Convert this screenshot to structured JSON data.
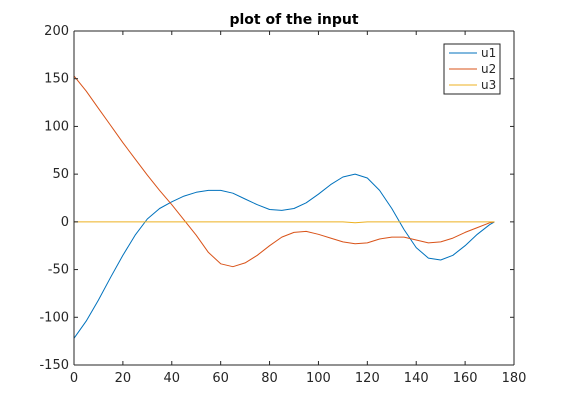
{
  "chart_data": {
    "type": "line",
    "title": "plot of the input",
    "xlabel": "",
    "ylabel": "",
    "xlim": [
      0,
      180
    ],
    "ylim": [
      -150,
      200
    ],
    "xticks": [
      0,
      20,
      40,
      60,
      80,
      100,
      120,
      140,
      160,
      180
    ],
    "yticks": [
      -150,
      -100,
      -50,
      0,
      50,
      100,
      150,
      200
    ],
    "grid": false,
    "legend_position": "top-right",
    "series": [
      {
        "name": "u1",
        "color": "#0072BD",
        "x": [
          0,
          5,
          10,
          15,
          20,
          25,
          30,
          35,
          40,
          45,
          50,
          55,
          60,
          65,
          70,
          75,
          80,
          85,
          90,
          95,
          100,
          105,
          110,
          115,
          120,
          125,
          130,
          135,
          140,
          145,
          150,
          155,
          160,
          165,
          170,
          172
        ],
        "y": [
          -122,
          -104,
          -82,
          -58,
          -35,
          -14,
          3,
          14,
          21,
          27,
          31,
          33,
          33,
          30,
          24,
          18,
          13,
          12,
          14,
          20,
          29,
          39,
          47,
          50,
          46,
          33,
          14,
          -8,
          -27,
          -38,
          -40,
          -35,
          -25,
          -13,
          -3,
          0
        ]
      },
      {
        "name": "u2",
        "color": "#D95319",
        "x": [
          0,
          5,
          10,
          15,
          20,
          25,
          30,
          35,
          40,
          45,
          50,
          55,
          60,
          65,
          70,
          75,
          80,
          85,
          90,
          95,
          100,
          105,
          110,
          115,
          120,
          125,
          130,
          135,
          140,
          145,
          150,
          155,
          160,
          165,
          170,
          172
        ],
        "y": [
          153,
          137,
          119,
          101,
          83,
          66,
          49,
          33,
          18,
          2,
          -14,
          -32,
          -44,
          -47,
          -43,
          -35,
          -25,
          -16,
          -11,
          -10,
          -13,
          -17,
          -21,
          -23,
          -22,
          -18,
          -16,
          -16,
          -19,
          -22,
          -21,
          -17,
          -11,
          -6,
          -1,
          0
        ]
      },
      {
        "name": "u3",
        "color": "#EDB120",
        "x": [
          0,
          20,
          40,
          60,
          80,
          100,
          110,
          115,
          120,
          130,
          140,
          150,
          160,
          172
        ],
        "y": [
          0,
          0,
          0,
          0,
          0,
          0,
          0,
          -1,
          0,
          0,
          0,
          0,
          0,
          0
        ]
      }
    ]
  }
}
